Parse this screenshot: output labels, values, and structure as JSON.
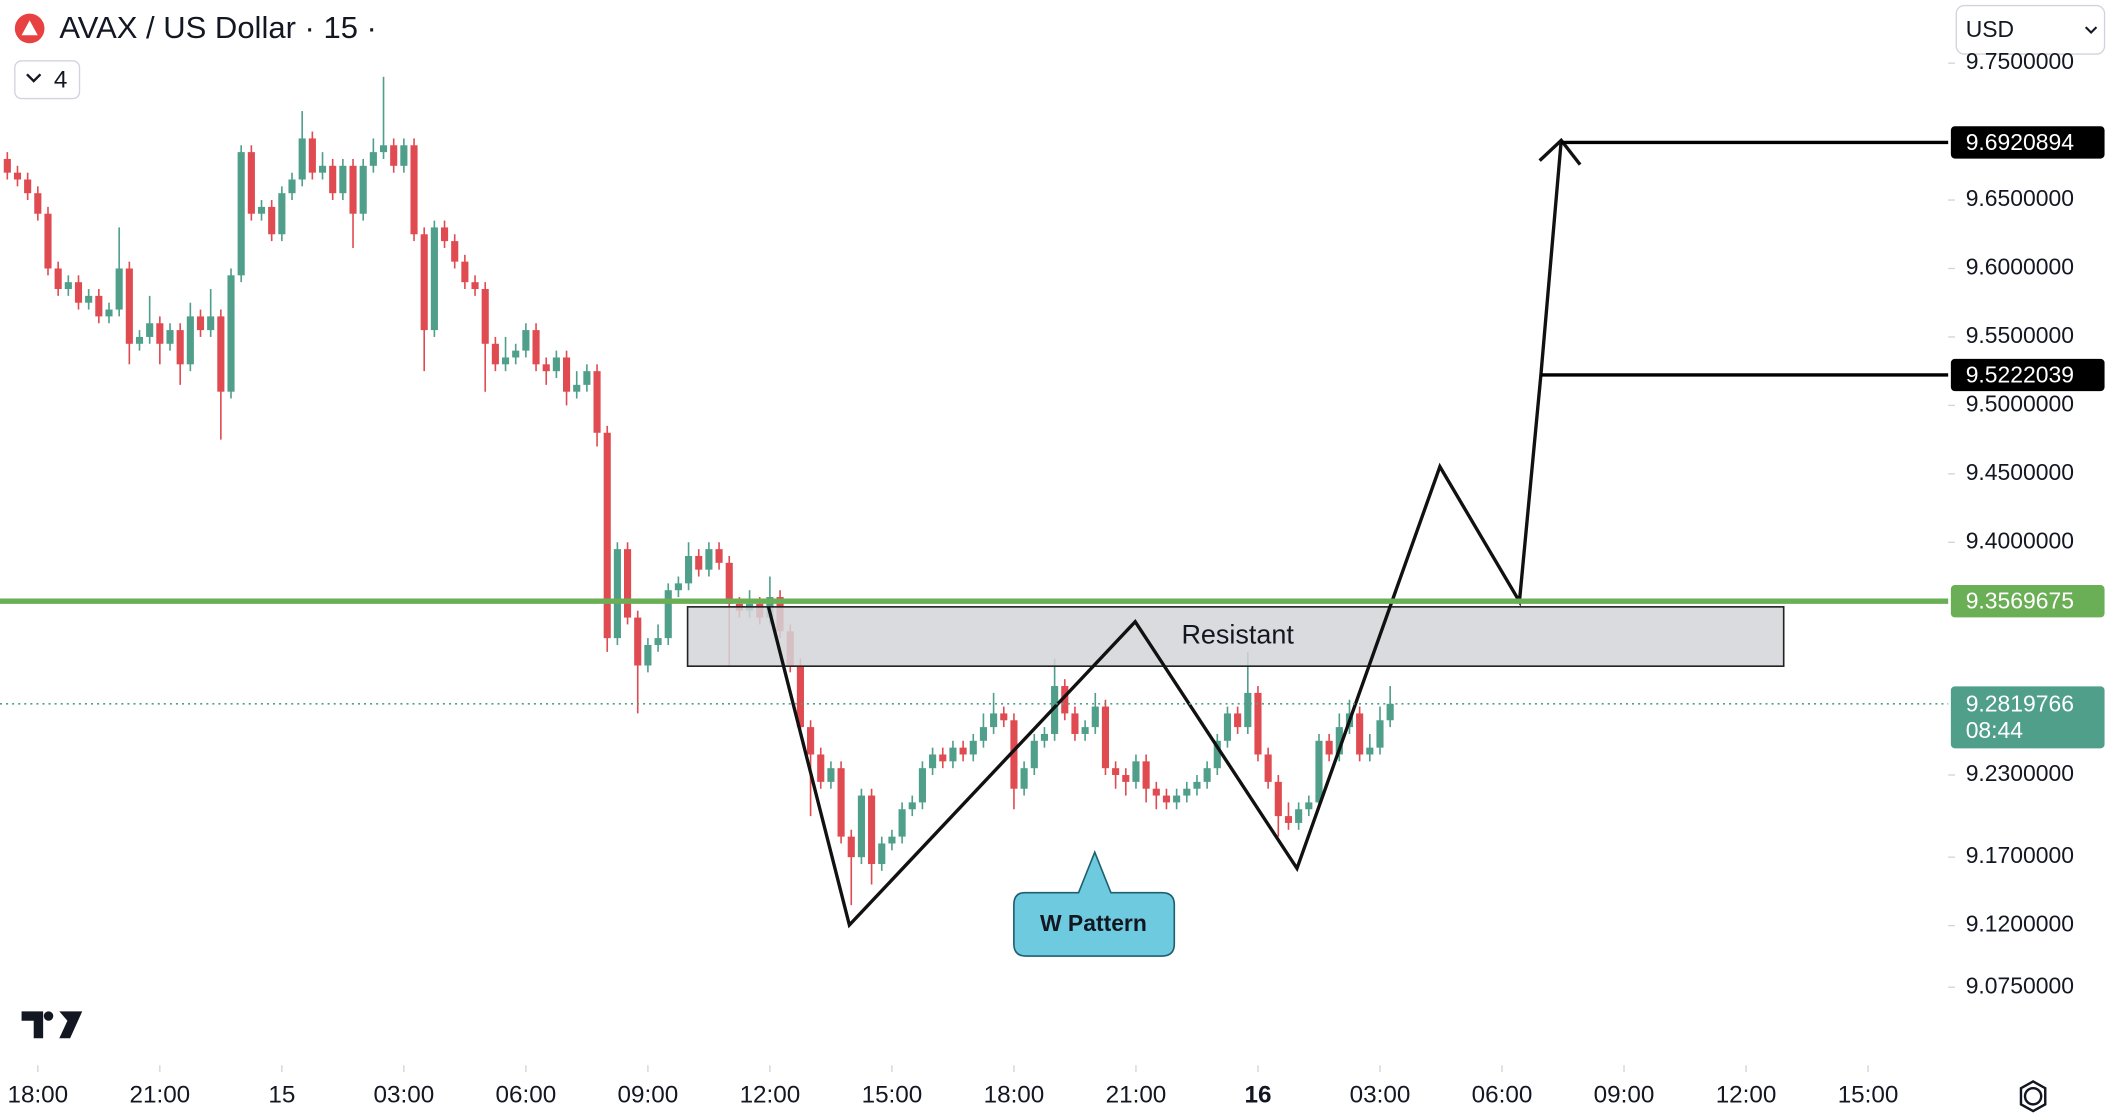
{
  "chart_data": {
    "type": "candlestick",
    "title": "AVAX / US Dollar · 15 ·",
    "indicator_count": 4,
    "currency": "USD",
    "up_color": "#4f9f8b",
    "down_color": "#e04b51",
    "xlim": [
      -0.93,
      46.97
    ],
    "ylim": [
      9.018,
      9.796
    ],
    "xticks": [
      {
        "value": 0,
        "label": "18:00"
      },
      {
        "value": 3,
        "label": "21:00"
      },
      {
        "value": 6,
        "label": "15"
      },
      {
        "value": 9,
        "label": "03:00"
      },
      {
        "value": 12,
        "label": "06:00"
      },
      {
        "value": 15,
        "label": "09:00"
      },
      {
        "value": 18,
        "label": "12:00"
      },
      {
        "value": 21,
        "label": "15:00"
      },
      {
        "value": 24,
        "label": "18:00"
      },
      {
        "value": 27,
        "label": "21:00"
      },
      {
        "value": 30,
        "label": "16"
      },
      {
        "value": 33,
        "label": "03:00"
      },
      {
        "value": 36,
        "label": "06:00"
      },
      {
        "value": 39,
        "label": "09:00"
      },
      {
        "value": 42,
        "label": "12:00"
      },
      {
        "value": 45,
        "label": "15:00"
      }
    ],
    "yticks": [
      {
        "value": 9.75,
        "label": "9.7500000"
      },
      {
        "value": 9.65,
        "label": "9.6500000"
      },
      {
        "value": 9.6,
        "label": "9.6000000"
      },
      {
        "value": 9.55,
        "label": "9.5500000"
      },
      {
        "value": 9.5,
        "label": "9.5000000"
      },
      {
        "value": 9.45,
        "label": "9.4500000"
      },
      {
        "value": 9.4,
        "label": "9.4000000"
      },
      {
        "value": 9.23,
        "label": "9.2300000"
      },
      {
        "value": 9.17,
        "label": "9.1700000"
      },
      {
        "value": 9.12,
        "label": "9.1200000"
      },
      {
        "value": 9.075,
        "label": "9.0750000"
      }
    ],
    "x": [
      -0.75,
      -0.5,
      -0.25,
      0,
      0.25,
      0.5,
      0.75,
      1,
      1.25,
      1.5,
      1.75,
      2,
      2.25,
      2.5,
      2.75,
      3,
      3.25,
      3.5,
      3.75,
      4,
      4.25,
      4.5,
      4.75,
      5,
      5.25,
      5.5,
      5.75,
      6,
      6.25,
      6.5,
      6.75,
      7,
      7.25,
      7.5,
      7.75,
      8,
      8.25,
      8.5,
      8.75,
      9,
      9.25,
      9.5,
      9.75,
      10,
      10.25,
      10.5,
      10.75,
      11,
      11.25,
      11.5,
      11.75,
      12,
      12.25,
      12.5,
      12.75,
      13,
      13.25,
      13.5,
      13.75,
      14,
      14.25,
      14.5,
      14.75,
      15,
      15.25,
      15.5,
      15.75,
      16,
      16.25,
      16.5,
      16.75,
      17,
      17.25,
      17.5,
      17.75,
      18,
      18.25,
      18.5,
      18.75,
      19,
      19.25,
      19.5,
      19.75,
      20,
      20.25,
      20.5,
      20.75,
      21,
      21.25,
      21.5,
      21.75,
      22,
      22.25,
      22.5,
      22.75,
      23,
      23.25,
      23.5,
      23.75,
      24,
      24.25,
      24.5,
      24.75,
      25,
      25.25,
      25.5,
      25.75,
      26,
      26.25,
      26.5,
      26.75,
      27,
      27.25,
      27.5,
      27.75,
      28,
      28.25,
      28.5,
      28.75,
      29,
      29.25,
      29.5,
      29.75,
      30,
      30.25,
      30.5,
      30.75,
      31,
      31.25,
      31.5,
      31.75,
      32,
      32.25,
      32.5,
      32.75,
      33,
      33.25
    ],
    "ohlc": [
      [
        9.68,
        9.685,
        9.665,
        9.67
      ],
      [
        9.67,
        9.675,
        9.66,
        9.665
      ],
      [
        9.665,
        9.67,
        9.65,
        9.655
      ],
      [
        9.655,
        9.66,
        9.635,
        9.64
      ],
      [
        9.64,
        9.645,
        9.595,
        9.6
      ],
      [
        9.6,
        9.605,
        9.58,
        9.585
      ],
      [
        9.585,
        9.595,
        9.58,
        9.59
      ],
      [
        9.59,
        9.595,
        9.57,
        9.575
      ],
      [
        9.575,
        9.585,
        9.57,
        9.58
      ],
      [
        9.58,
        9.585,
        9.56,
        9.565
      ],
      [
        9.565,
        9.575,
        9.56,
        9.57
      ],
      [
        9.57,
        9.63,
        9.565,
        9.6
      ],
      [
        9.6,
        9.605,
        9.53,
        9.545
      ],
      [
        9.545,
        9.555,
        9.54,
        9.55
      ],
      [
        9.55,
        9.58,
        9.545,
        9.56
      ],
      [
        9.56,
        9.565,
        9.53,
        9.545
      ],
      [
        9.545,
        9.56,
        9.54,
        9.555
      ],
      [
        9.555,
        9.56,
        9.515,
        9.53
      ],
      [
        9.53,
        9.575,
        9.525,
        9.565
      ],
      [
        9.565,
        9.57,
        9.55,
        9.555
      ],
      [
        9.555,
        9.585,
        9.55,
        9.565
      ],
      [
        9.565,
        9.57,
        9.475,
        9.51
      ],
      [
        9.51,
        9.6,
        9.505,
        9.595
      ],
      [
        9.595,
        9.69,
        9.59,
        9.685
      ],
      [
        9.685,
        9.69,
        9.635,
        9.64
      ],
      [
        9.64,
        9.65,
        9.635,
        9.645
      ],
      [
        9.645,
        9.65,
        9.62,
        9.625
      ],
      [
        9.625,
        9.66,
        9.62,
        9.655
      ],
      [
        9.655,
        9.67,
        9.65,
        9.665
      ],
      [
        9.665,
        9.715,
        9.66,
        9.695
      ],
      [
        9.695,
        9.7,
        9.665,
        9.67
      ],
      [
        9.67,
        9.685,
        9.665,
        9.675
      ],
      [
        9.675,
        9.68,
        9.65,
        9.655
      ],
      [
        9.655,
        9.68,
        9.65,
        9.675
      ],
      [
        9.675,
        9.68,
        9.615,
        9.64
      ],
      [
        9.64,
        9.68,
        9.635,
        9.675
      ],
      [
        9.675,
        9.695,
        9.67,
        9.685
      ],
      [
        9.685,
        9.74,
        9.68,
        9.69
      ],
      [
        9.69,
        9.695,
        9.67,
        9.675
      ],
      [
        9.675,
        9.695,
        9.67,
        9.69
      ],
      [
        9.69,
        9.695,
        9.62,
        9.625
      ],
      [
        9.625,
        9.63,
        9.525,
        9.555
      ],
      [
        9.555,
        9.635,
        9.55,
        9.63
      ],
      [
        9.63,
        9.635,
        9.615,
        9.62
      ],
      [
        9.62,
        9.625,
        9.6,
        9.605
      ],
      [
        9.605,
        9.61,
        9.585,
        9.59
      ],
      [
        9.59,
        9.595,
        9.58,
        9.585
      ],
      [
        9.585,
        9.59,
        9.51,
        9.545
      ],
      [
        9.545,
        9.55,
        9.525,
        9.53
      ],
      [
        9.53,
        9.55,
        9.525,
        9.535
      ],
      [
        9.535,
        9.545,
        9.53,
        9.54
      ],
      [
        9.54,
        9.56,
        9.535,
        9.555
      ],
      [
        9.555,
        9.56,
        9.525,
        9.53
      ],
      [
        9.53,
        9.535,
        9.515,
        9.525
      ],
      [
        9.525,
        9.54,
        9.52,
        9.535
      ],
      [
        9.535,
        9.54,
        9.5,
        9.51
      ],
      [
        9.51,
        9.525,
        9.505,
        9.515
      ],
      [
        9.515,
        9.53,
        9.51,
        9.525
      ],
      [
        9.525,
        9.53,
        9.47,
        9.48
      ],
      [
        9.48,
        9.485,
        9.32,
        9.33
      ],
      [
        9.33,
        9.4,
        9.325,
        9.395
      ],
      [
        9.395,
        9.4,
        9.34,
        9.345
      ],
      [
        9.345,
        9.35,
        9.275,
        9.31
      ],
      [
        9.31,
        9.33,
        9.305,
        9.325
      ],
      [
        9.325,
        9.34,
        9.32,
        9.33
      ],
      [
        9.33,
        9.37,
        9.325,
        9.365
      ],
      [
        9.365,
        9.375,
        9.36,
        9.37
      ],
      [
        9.37,
        9.4,
        9.365,
        9.39
      ],
      [
        9.39,
        9.395,
        9.375,
        9.38
      ],
      [
        9.38,
        9.4,
        9.375,
        9.395
      ],
      [
        9.395,
        9.4,
        9.38,
        9.385
      ],
      [
        9.385,
        9.39,
        9.31,
        9.355
      ],
      [
        9.355,
        9.36,
        9.345,
        9.35
      ],
      [
        9.35,
        9.365,
        9.345,
        9.355
      ],
      [
        9.355,
        9.36,
        9.34,
        9.345
      ],
      [
        9.345,
        9.375,
        9.34,
        9.36
      ],
      [
        9.36,
        9.365,
        9.33,
        9.335
      ],
      [
        9.335,
        9.34,
        9.305,
        9.31
      ],
      [
        9.31,
        9.315,
        9.26,
        9.265
      ],
      [
        9.265,
        9.27,
        9.2,
        9.245
      ],
      [
        9.245,
        9.25,
        9.22,
        9.225
      ],
      [
        9.225,
        9.24,
        9.22,
        9.235
      ],
      [
        9.235,
        9.24,
        9.18,
        9.185
      ],
      [
        9.185,
        9.19,
        9.135,
        9.17
      ],
      [
        9.17,
        9.22,
        9.165,
        9.215
      ],
      [
        9.215,
        9.22,
        9.15,
        9.165
      ],
      [
        9.165,
        9.185,
        9.16,
        9.18
      ],
      [
        9.18,
        9.19,
        9.175,
        9.185
      ],
      [
        9.185,
        9.21,
        9.18,
        9.205
      ],
      [
        9.205,
        9.215,
        9.2,
        9.21
      ],
      [
        9.21,
        9.24,
        9.205,
        9.235
      ],
      [
        9.235,
        9.25,
        9.23,
        9.245
      ],
      [
        9.245,
        9.25,
        9.235,
        9.24
      ],
      [
        9.24,
        9.255,
        9.235,
        9.25
      ],
      [
        9.25,
        9.255,
        9.24,
        9.245
      ],
      [
        9.245,
        9.26,
        9.24,
        9.255
      ],
      [
        9.255,
        9.275,
        9.25,
        9.265
      ],
      [
        9.265,
        9.29,
        9.26,
        9.275
      ],
      [
        9.275,
        9.28,
        9.265,
        9.27
      ],
      [
        9.27,
        9.275,
        9.205,
        9.22
      ],
      [
        9.22,
        9.24,
        9.215,
        9.235
      ],
      [
        9.235,
        9.26,
        9.23,
        9.255
      ],
      [
        9.255,
        9.265,
        9.25,
        9.26
      ],
      [
        9.26,
        9.315,
        9.255,
        9.295
      ],
      [
        9.295,
        9.3,
        9.27,
        9.275
      ],
      [
        9.275,
        9.28,
        9.255,
        9.26
      ],
      [
        9.26,
        9.27,
        9.255,
        9.265
      ],
      [
        9.265,
        9.29,
        9.26,
        9.28
      ],
      [
        9.28,
        9.285,
        9.23,
        9.235
      ],
      [
        9.235,
        9.24,
        9.22,
        9.23
      ],
      [
        9.23,
        9.235,
        9.215,
        9.225
      ],
      [
        9.225,
        9.245,
        9.22,
        9.24
      ],
      [
        9.24,
        9.245,
        9.21,
        9.22
      ],
      [
        9.22,
        9.225,
        9.205,
        9.215
      ],
      [
        9.215,
        9.22,
        9.205,
        9.21
      ],
      [
        9.21,
        9.22,
        9.205,
        9.215
      ],
      [
        9.215,
        9.225,
        9.21,
        9.22
      ],
      [
        9.22,
        9.23,
        9.215,
        9.225
      ],
      [
        9.225,
        9.24,
        9.22,
        9.235
      ],
      [
        9.235,
        9.26,
        9.23,
        9.255
      ],
      [
        9.255,
        9.28,
        9.25,
        9.275
      ],
      [
        9.275,
        9.28,
        9.26,
        9.265
      ],
      [
        9.265,
        9.32,
        9.26,
        9.29
      ],
      [
        9.29,
        9.295,
        9.24,
        9.245
      ],
      [
        9.245,
        9.25,
        9.22,
        9.225
      ],
      [
        9.225,
        9.23,
        9.185,
        9.2
      ],
      [
        9.2,
        9.21,
        9.19,
        9.195
      ],
      [
        9.195,
        9.21,
        9.19,
        9.205
      ],
      [
        9.205,
        9.215,
        9.2,
        9.21
      ],
      [
        9.21,
        9.26,
        9.205,
        9.255
      ],
      [
        9.255,
        9.26,
        9.24,
        9.245
      ],
      [
        9.245,
        9.275,
        9.24,
        9.265
      ],
      [
        9.265,
        9.285,
        9.26,
        9.275
      ],
      [
        9.275,
        9.28,
        9.24,
        9.245
      ],
      [
        9.245,
        9.26,
        9.24,
        9.25
      ],
      [
        9.25,
        9.28,
        9.245,
        9.27
      ],
      [
        9.27,
        9.295,
        9.265,
        9.282
      ]
    ],
    "levels": [
      {
        "price": 9.6920894,
        "color": "#000000"
      },
      {
        "price": 9.5222039,
        "color": "#000000"
      },
      {
        "price": 9.3569675,
        "color": "#6aae55"
      }
    ],
    "current_price": 9.2819766,
    "current_color": "#4f9f8b",
    "countdown": "08:44",
    "zone_label": "Resistant",
    "pattern_label": "W Pattern"
  }
}
